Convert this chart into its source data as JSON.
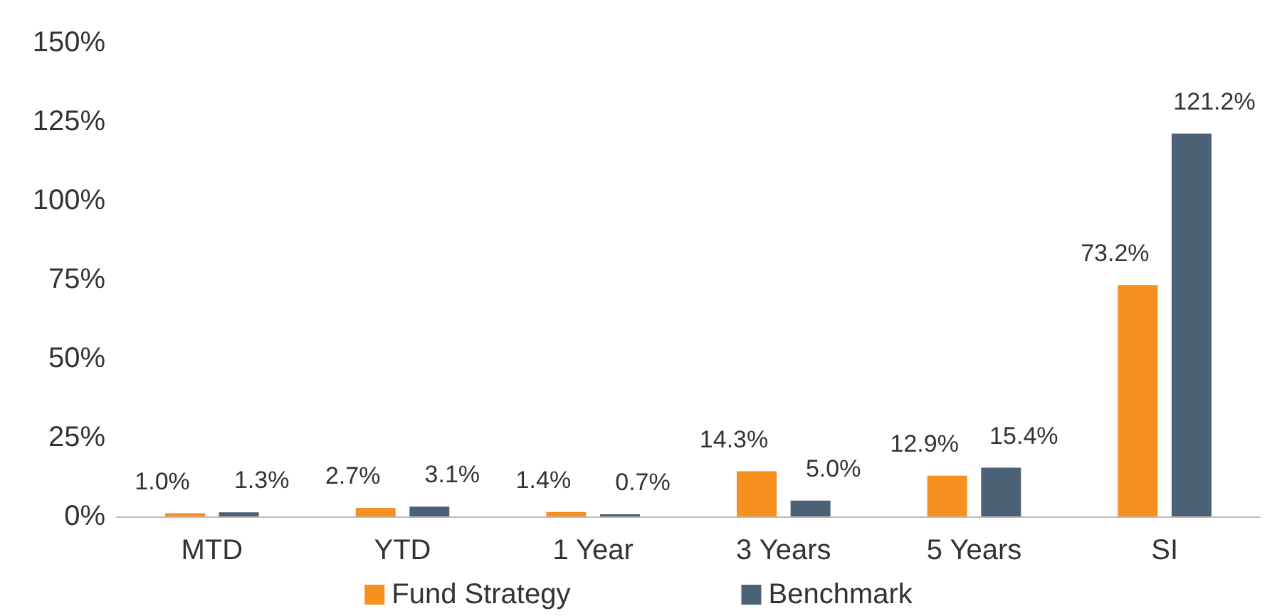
{
  "chart_data": {
    "type": "bar",
    "categories": [
      "MTD",
      "YTD",
      "1 Year",
      "3 Years",
      "5 Years",
      "SI"
    ],
    "series": [
      {
        "name": "Fund Strategy",
        "color": "#f7901e",
        "values": [
          1.0,
          2.7,
          1.4,
          14.3,
          12.9,
          73.2
        ],
        "value_labels": [
          "1.0%",
          "2.7%",
          "1.4%",
          "14.3%",
          "12.9%",
          "73.2%"
        ]
      },
      {
        "name": "Benchmark",
        "color": "#4b6175",
        "values": [
          1.3,
          3.1,
          0.7,
          5.0,
          15.4,
          121.2
        ],
        "value_labels": [
          "1.3%",
          "3.1%",
          "0.7%",
          "5.0%",
          "15.4%",
          "121.2%"
        ]
      }
    ],
    "ylim": [
      0,
      150
    ],
    "yticks": [
      {
        "value": 0,
        "label": "0%"
      },
      {
        "value": 25,
        "label": "25%"
      },
      {
        "value": 50,
        "label": "50%"
      },
      {
        "value": 75,
        "label": "75%"
      },
      {
        "value": 100,
        "label": "100%"
      },
      {
        "value": 125,
        "label": "125%"
      },
      {
        "value": 150,
        "label": "150%"
      }
    ],
    "grid": false,
    "legend": "bottom"
  }
}
